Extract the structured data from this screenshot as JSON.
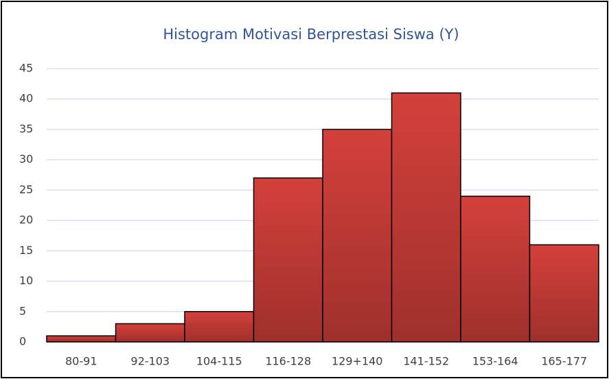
{
  "chart_data": {
    "type": "bar",
    "title": "Histogram Motivasi Berprestasi Siswa (Y)",
    "categories": [
      "80-91",
      "92-103",
      "104-115",
      "116-128",
      "129+140",
      "141-152",
      "153-164",
      "165-177"
    ],
    "values": [
      1,
      3,
      5,
      27,
      35,
      41,
      24,
      16
    ],
    "color": "#d4403b",
    "ylim": [
      0,
      45
    ],
    "yticks": [
      0,
      5,
      10,
      15,
      20,
      25,
      30,
      35,
      40,
      45
    ],
    "grid": true
  }
}
